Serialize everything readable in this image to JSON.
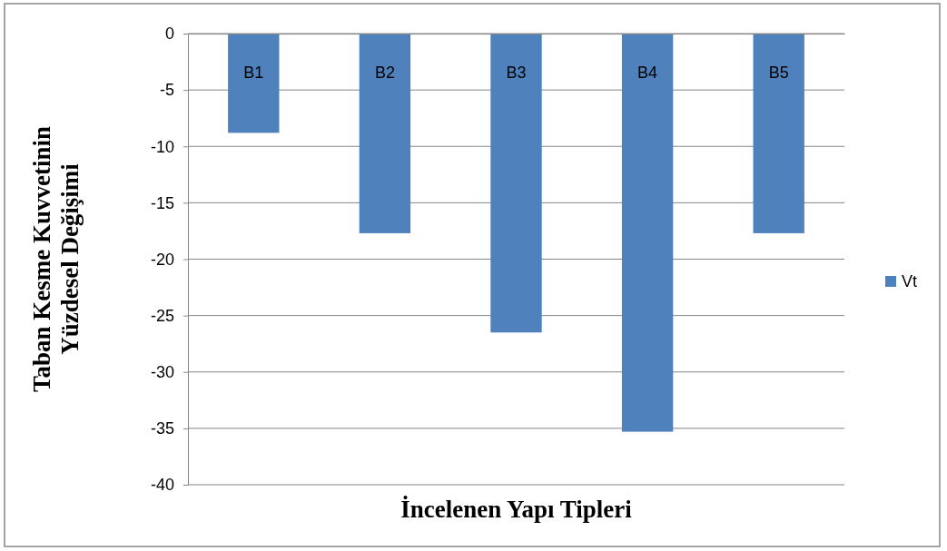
{
  "chart_data": {
    "type": "bar",
    "xlabel": "İncelenen Yapı Tipleri",
    "ylabel": "Taban Kesme Kuvvetinin Yüzdesel Değişimi",
    "categories": [
      "B1",
      "B2",
      "B3",
      "B4",
      "B5"
    ],
    "series": [
      {
        "name": "Vt",
        "color": "#4f81bd",
        "values": [
          -8.8,
          -17.7,
          -26.5,
          -35.3,
          -17.7
        ]
      }
    ],
    "ylim": [
      -40,
      0
    ],
    "yticks": [
      0,
      -5,
      -10,
      -15,
      -20,
      -25,
      -30,
      -35,
      -40
    ],
    "grid": "y",
    "legend": "right"
  }
}
